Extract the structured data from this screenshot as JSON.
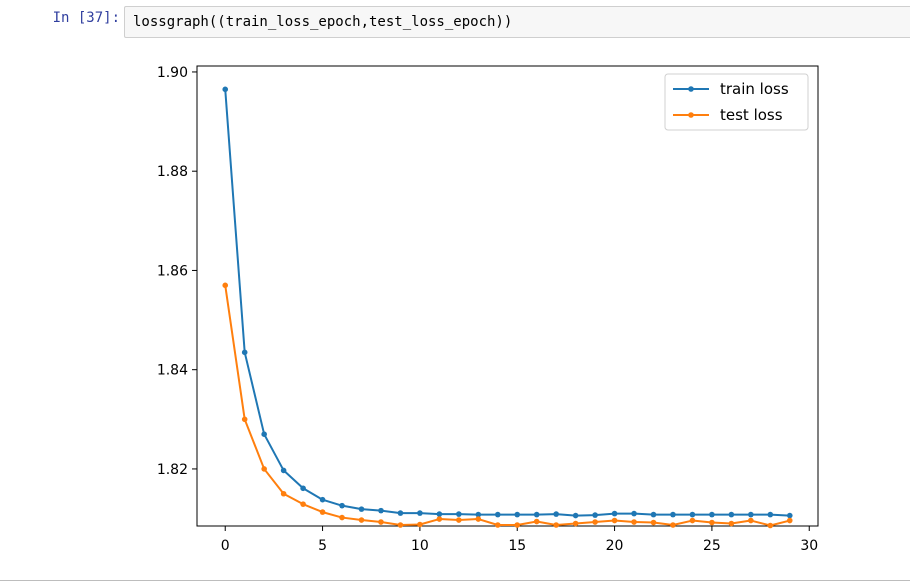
{
  "cell": {
    "prompt": "In [37]:",
    "code": "lossgraph((train_loss_epoch,test_loss_epoch))"
  },
  "chart_data": {
    "type": "line",
    "title": "",
    "xlabel": "",
    "ylabel": "",
    "xlim": [
      -1.45,
      30.45
    ],
    "ylim": [
      1.8085,
      1.9012
    ],
    "x_ticks": [
      0,
      5,
      10,
      15,
      20,
      25,
      30
    ],
    "y_ticks": [
      1.82,
      1.84,
      1.86,
      1.88,
      1.9
    ],
    "x_tick_labels": [
      "0",
      "5",
      "10",
      "15",
      "20",
      "25",
      "30"
    ],
    "y_tick_labels": [
      "1.82",
      "1.84",
      "1.86",
      "1.88",
      "1.90"
    ],
    "legend_position": "top-right",
    "grid": false,
    "x": [
      0,
      1,
      2,
      3,
      4,
      5,
      6,
      7,
      8,
      9,
      10,
      11,
      12,
      13,
      14,
      15,
      16,
      17,
      18,
      19,
      20,
      21,
      22,
      23,
      24,
      25,
      26,
      27,
      28,
      29
    ],
    "series": [
      {
        "name": "train loss",
        "color": "#1f77b4",
        "values": [
          1.8965,
          1.8435,
          1.827,
          1.8197,
          1.8161,
          1.8138,
          1.8126,
          1.8119,
          1.8116,
          1.8111,
          1.8111,
          1.8109,
          1.8109,
          1.8108,
          1.8108,
          1.8108,
          1.8108,
          1.8109,
          1.8106,
          1.8107,
          1.811,
          1.811,
          1.8108,
          1.8108,
          1.8108,
          1.8108,
          1.8108,
          1.8108,
          1.8108,
          1.8106
        ]
      },
      {
        "name": "test loss",
        "color": "#ff7f0e",
        "values": [
          1.857,
          1.83,
          1.82,
          1.815,
          1.8129,
          1.8113,
          1.8102,
          1.8097,
          1.8093,
          1.8087,
          1.8088,
          1.8099,
          1.8097,
          1.8099,
          1.8087,
          1.8087,
          1.8094,
          1.8087,
          1.809,
          1.8093,
          1.8096,
          1.8093,
          1.8092,
          1.8087,
          1.8096,
          1.8092,
          1.809,
          1.8096,
          1.8086,
          1.8096
        ]
      }
    ]
  }
}
